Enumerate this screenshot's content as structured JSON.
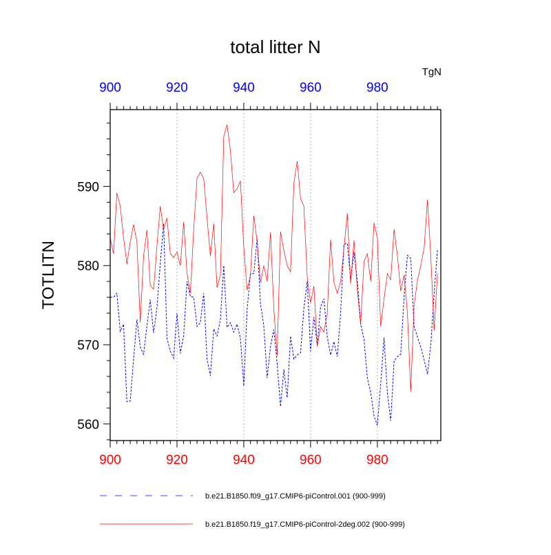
{
  "chart_data": {
    "type": "line",
    "title": "total litter N",
    "units": "TgN",
    "ylabel": "TOTLITN",
    "xlabel": "",
    "xlim": [
      900,
      999
    ],
    "ylim": [
      557.9,
      599.7
    ],
    "x_ticks": [
      900,
      920,
      940,
      960,
      980
    ],
    "y_ticks": [
      560,
      570,
      580,
      590
    ],
    "grid": "vertical dotted at major x ticks",
    "colors": {
      "top_axis": "#0000ff",
      "bottom_axis": "#ff0000"
    },
    "series": [
      {
        "name": "b.e21.B1850.f09_g17.CMIP6-piControl.001 (900-999)",
        "color": "#0000ff",
        "style": "dashed",
        "x_start": 900,
        "values": [
          576.0,
          576.0,
          576.5,
          571.7,
          572.6,
          562.8,
          562.9,
          568.2,
          573.2,
          569.7,
          568.8,
          572.4,
          575.7,
          571.5,
          574.7,
          580.3,
          585.3,
          570.8,
          569.2,
          568.3,
          574.0,
          568.9,
          571.2,
          578.0,
          576.1,
          576.0,
          572.3,
          572.8,
          576.5,
          568.2,
          566.1,
          572.0,
          571.1,
          573.2,
          580.0,
          572.2,
          572.8,
          571.6,
          572.6,
          570.8,
          564.8,
          574.5,
          579.0,
          579.0,
          583.4,
          575.2,
          572.4,
          565.8,
          569.8,
          571.9,
          567.6,
          562.2,
          566.9,
          563.3,
          571.1,
          568.2,
          568.7,
          569.0,
          574.6,
          578.0,
          569.2,
          573.5,
          569.9,
          574.8,
          575.8,
          571.0,
          568.7,
          570.4,
          568.5,
          574.0,
          582.7,
          582.8,
          578.2,
          581.7,
          578.1,
          572.7,
          570.7,
          565.8,
          564.0,
          561.0,
          559.8,
          565.0,
          570.9,
          563.9,
          560.4,
          567.9,
          568.5,
          568.8,
          576.1,
          581.3,
          580.9,
          572.3,
          571.0,
          569.7,
          568.1,
          566.3,
          570.0,
          576.5,
          582.0
        ]
      },
      {
        "name": "b.e21.B1850.f19_g17.CMIP6-piControl-2deg.002 (900-999)",
        "color": "#ff0000",
        "style": "solid",
        "x_start": 900,
        "values": [
          583.5,
          581.5,
          589.2,
          587.5,
          583.5,
          580.2,
          583.0,
          585.2,
          583.0,
          572.8,
          581.2,
          584.5,
          577.5,
          577.0,
          582.5,
          587.5,
          584.5,
          586.0,
          581.5,
          581.0,
          581.7,
          580.0,
          585.5,
          579.0,
          576.5,
          584.5,
          591.0,
          591.8,
          591.0,
          586.0,
          581.2,
          585.3,
          577.2,
          578.8,
          596.3,
          597.8,
          594.5,
          589.2,
          589.7,
          590.7,
          582.3,
          576.9,
          578.8,
          586.3,
          583.0,
          577.9,
          580.0,
          578.0,
          584.2,
          574.5,
          568.6,
          584.3,
          581.9,
          580.0,
          579.2,
          590.4,
          593.2,
          588.5,
          587.5,
          578.5,
          575.3,
          577.4,
          569.8,
          572.3,
          571.6,
          574.0,
          583.3,
          577.9,
          576.5,
          578.0,
          582.2,
          586.6,
          577.7,
          583.2,
          577.0,
          572.5,
          580.5,
          581.5,
          578.0,
          585.4,
          583.5,
          572.3,
          575.8,
          579.0,
          578.2,
          584.6,
          581.3,
          576.8,
          578.8,
          574.0,
          564.1,
          575.0,
          578.1,
          580.0,
          582.2,
          588.3,
          581.2,
          571.8,
          579.0
        ]
      }
    ]
  }
}
